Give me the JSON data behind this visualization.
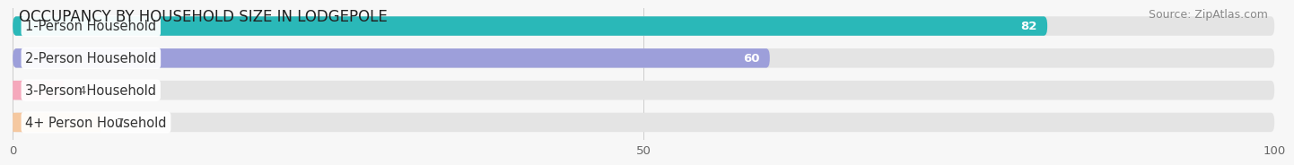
{
  "title": "OCCUPANCY BY HOUSEHOLD SIZE IN LODGEPOLE",
  "source": "Source: ZipAtlas.com",
  "categories": [
    "1-Person Household",
    "2-Person Household",
    "3-Person Household",
    "4+ Person Household"
  ],
  "values": [
    82,
    60,
    4,
    7
  ],
  "bar_colors": [
    "#2ab8b8",
    "#9d9fda",
    "#f5a8bc",
    "#f5c8a0"
  ],
  "xlim": [
    0,
    100
  ],
  "xticks": [
    0,
    50,
    100
  ],
  "background_color": "#f7f7f7",
  "bar_background_color": "#e4e4e4",
  "title_fontsize": 12,
  "source_fontsize": 9,
  "label_fontsize": 10.5,
  "value_fontsize": 9.5
}
